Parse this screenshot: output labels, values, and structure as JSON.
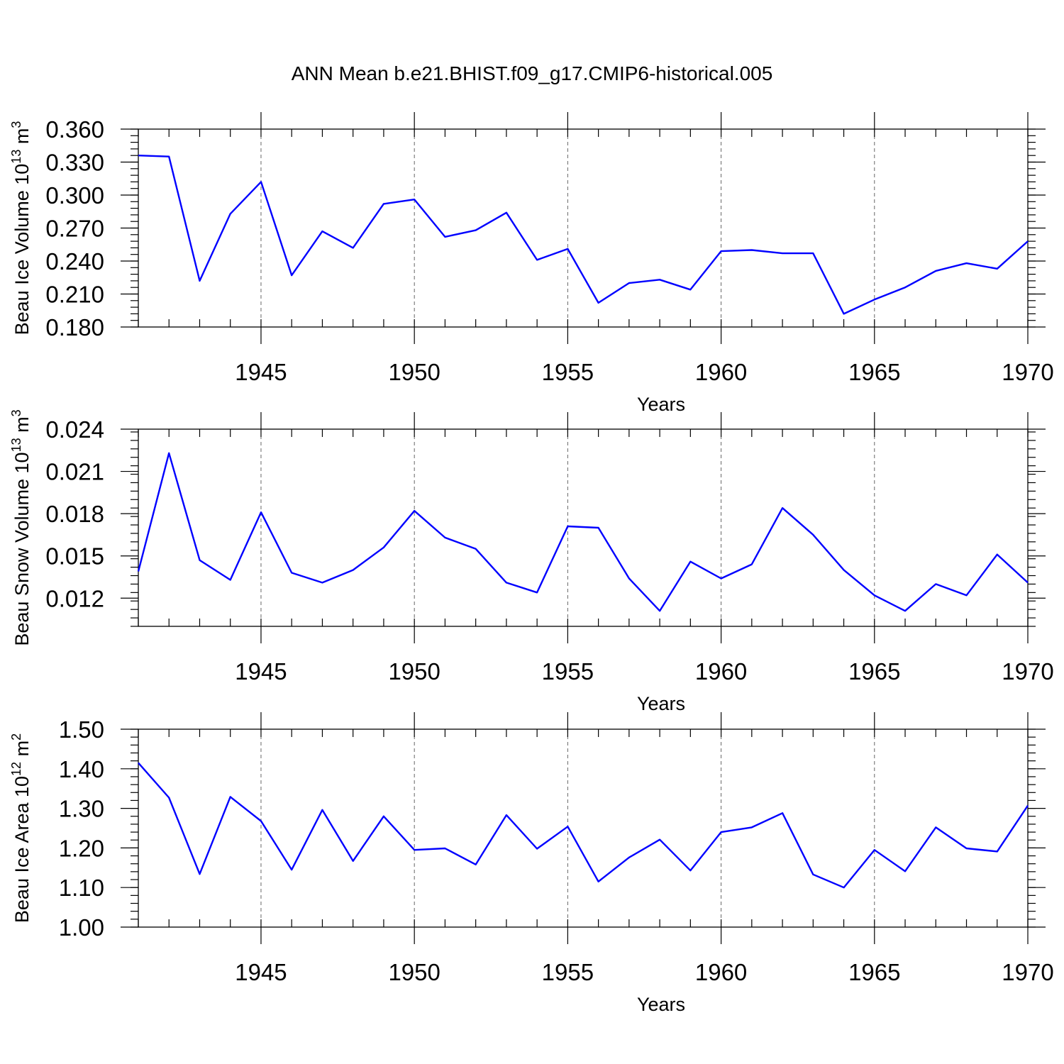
{
  "title": "ANN Mean b.e21.BHIST.f09_g17.CMIP6-historical.005",
  "colors": {
    "series": "#0000ff",
    "axis": "#000000",
    "grid": "#666666"
  },
  "chart_data": [
    {
      "type": "line",
      "xlabel": "Years",
      "ylabel": "Beau Ice Volume 10",
      "ylabel_exponent": "13",
      "ylabel_unit": "m",
      "ylabel_unit_exponent": "3",
      "xlim": [
        1941,
        1970
      ],
      "ylim": [
        0.18,
        0.36
      ],
      "x_ticks": [
        1945,
        1950,
        1955,
        1960,
        1965,
        1970
      ],
      "y_ticks": [
        0.18,
        0.21,
        0.24,
        0.27,
        0.3,
        0.33,
        0.36
      ],
      "y_tick_labels": [
        "0.180",
        "0.210",
        "0.240",
        "0.270",
        "0.300",
        "0.330",
        "0.360"
      ],
      "grid": "vertical dashed at major x ticks",
      "x": [
        1941,
        1942,
        1943,
        1944,
        1945,
        1946,
        1947,
        1948,
        1949,
        1950,
        1951,
        1952,
        1953,
        1954,
        1955,
        1956,
        1957,
        1958,
        1959,
        1960,
        1961,
        1962,
        1963,
        1964,
        1965,
        1966,
        1967,
        1968,
        1969,
        1970
      ],
      "values": [
        0.336,
        0.335,
        0.222,
        0.283,
        0.312,
        0.227,
        0.267,
        0.252,
        0.292,
        0.296,
        0.262,
        0.268,
        0.284,
        0.241,
        0.251,
        0.202,
        0.22,
        0.223,
        0.214,
        0.249,
        0.25,
        0.247,
        0.247,
        0.192,
        0.205,
        0.216,
        0.231,
        0.238,
        0.233,
        0.258
      ]
    },
    {
      "type": "line",
      "xlabel": "Years",
      "ylabel": "Beau Snow Volume 10",
      "ylabel_exponent": "13",
      "ylabel_unit": "m",
      "ylabel_unit_exponent": "3",
      "xlim": [
        1941,
        1970
      ],
      "ylim": [
        0.01,
        0.024
      ],
      "x_ticks": [
        1945,
        1950,
        1955,
        1960,
        1965,
        1970
      ],
      "y_ticks": [
        0.012,
        0.015,
        0.018,
        0.021,
        0.024
      ],
      "y_tick_labels": [
        "0.012",
        "0.015",
        "0.018",
        "0.021",
        "0.024"
      ],
      "grid": "vertical dashed at major x ticks",
      "x": [
        1941,
        1942,
        1943,
        1944,
        1945,
        1946,
        1947,
        1948,
        1949,
        1950,
        1951,
        1952,
        1953,
        1954,
        1955,
        1956,
        1957,
        1958,
        1959,
        1960,
        1961,
        1962,
        1963,
        1964,
        1965,
        1966,
        1967,
        1968,
        1969,
        1970
      ],
      "values": [
        0.0139,
        0.0223,
        0.0147,
        0.0133,
        0.0181,
        0.0138,
        0.0131,
        0.014,
        0.0156,
        0.0182,
        0.0163,
        0.0155,
        0.0131,
        0.0124,
        0.0171,
        0.017,
        0.0134,
        0.0111,
        0.0146,
        0.0134,
        0.0144,
        0.0184,
        0.0165,
        0.014,
        0.0122,
        0.0111,
        0.013,
        0.0122,
        0.0151,
        0.0131
      ]
    },
    {
      "type": "line",
      "xlabel": "Years",
      "ylabel": "Beau Ice Area 10",
      "ylabel_exponent": "12",
      "ylabel_unit": "m",
      "ylabel_unit_exponent": "2",
      "xlim": [
        1941,
        1970
      ],
      "ylim": [
        1.0,
        1.5
      ],
      "x_ticks": [
        1945,
        1950,
        1955,
        1960,
        1965,
        1970
      ],
      "y_ticks": [
        1.0,
        1.1,
        1.2,
        1.3,
        1.4,
        1.5
      ],
      "y_tick_labels": [
        "1.00",
        "1.10",
        "1.20",
        "1.30",
        "1.40",
        "1.50"
      ],
      "grid": "vertical dashed at major x ticks",
      "x": [
        1941,
        1942,
        1943,
        1944,
        1945,
        1946,
        1947,
        1948,
        1949,
        1950,
        1951,
        1952,
        1953,
        1954,
        1955,
        1956,
        1957,
        1958,
        1959,
        1960,
        1961,
        1962,
        1963,
        1964,
        1965,
        1966,
        1967,
        1968,
        1969,
        1970
      ],
      "values": [
        1.415,
        1.327,
        1.134,
        1.329,
        1.268,
        1.145,
        1.296,
        1.167,
        1.28,
        1.195,
        1.199,
        1.158,
        1.283,
        1.198,
        1.254,
        1.115,
        1.176,
        1.221,
        1.143,
        1.24,
        1.252,
        1.288,
        1.133,
        1.1,
        1.195,
        1.141,
        1.252,
        1.199,
        1.191,
        1.307
      ]
    }
  ]
}
